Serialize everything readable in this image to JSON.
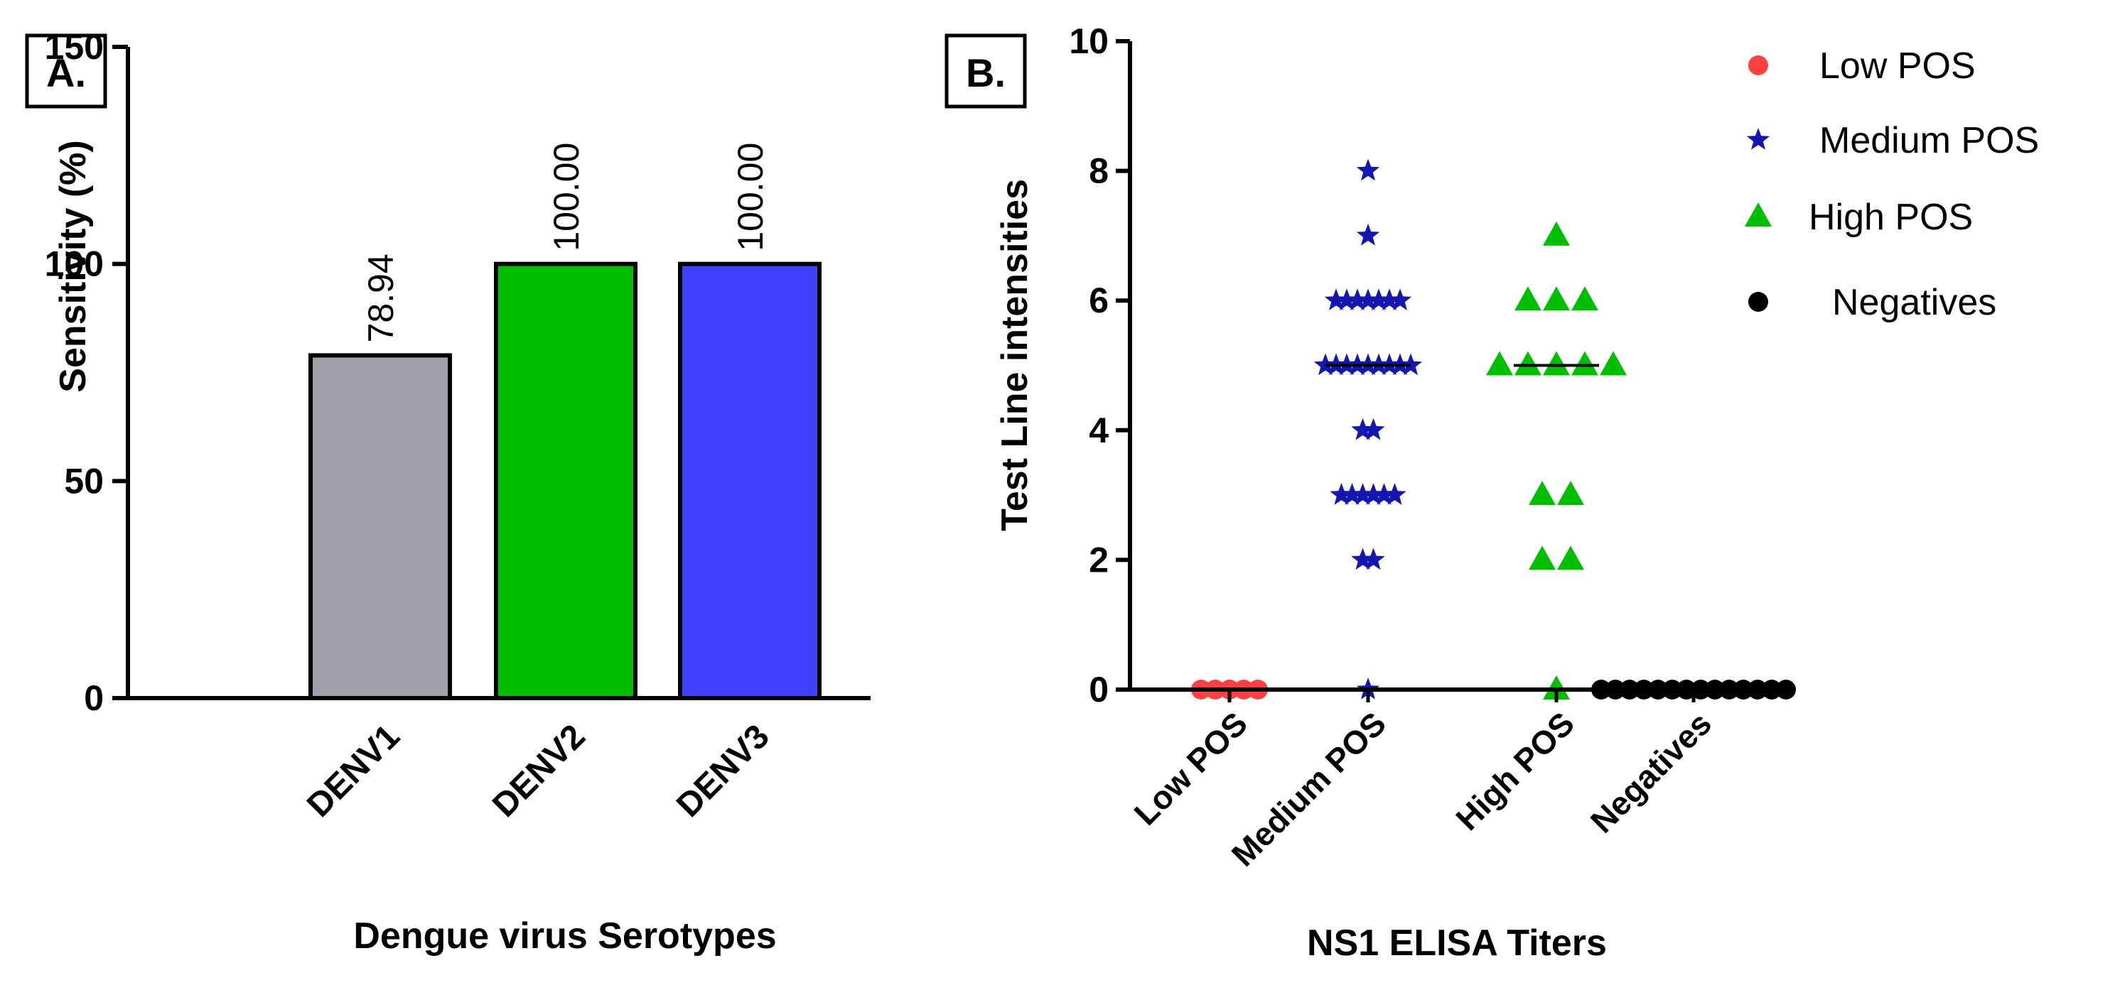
{
  "chart_data": [
    {
      "panel": "A.",
      "type": "bar",
      "categories": [
        "DENV1",
        "DENV2",
        "DENV3"
      ],
      "values": [
        78.94,
        100.0,
        100.0
      ],
      "value_labels": [
        "78.94",
        "100.00",
        "100.00"
      ],
      "colors": [
        "#a0a0a8",
        "#00bf00",
        "#4040ff"
      ],
      "xlabel": "Dengue virus Serotypes",
      "ylabel": "Sensitivity (%)",
      "ylim": [
        0,
        150
      ],
      "yticks": [
        "0",
        "50",
        "100",
        "150"
      ],
      "grid": false
    },
    {
      "panel": "B.",
      "type": "scatter",
      "categories": [
        "Low POS",
        "Medium POS",
        "High POS",
        "Negatives"
      ],
      "xlabel": "NS1 ELISA Titers",
      "ylabel": "Test Line intensities",
      "ylim": [
        0,
        10
      ],
      "yticks": [
        "0",
        "2",
        "4",
        "6",
        "8",
        "10"
      ],
      "grid": false,
      "legend_position": "top-right",
      "series": [
        {
          "name": "Low POS",
          "marker": "circle",
          "color": "#ff4040",
          "points": [
            {
              "y": 0,
              "count": 5
            }
          ],
          "median": 0
        },
        {
          "name": "Medium POS",
          "marker": "star",
          "color": "#1515b0",
          "points": [
            {
              "y": 0,
              "count": 1
            },
            {
              "y": 2,
              "count": 2
            },
            {
              "y": 3,
              "count": 6
            },
            {
              "y": 4,
              "count": 2
            },
            {
              "y": 5,
              "count": 9
            },
            {
              "y": 6,
              "count": 7
            },
            {
              "y": 7,
              "count": 1
            },
            {
              "y": 8,
              "count": 1
            }
          ],
          "median": 5
        },
        {
          "name": "High POS",
          "marker": "triangle",
          "color": "#00bf00",
          "points": [
            {
              "y": 0,
              "count": 1
            },
            {
              "y": 2,
              "count": 2
            },
            {
              "y": 3,
              "count": 2
            },
            {
              "y": 5,
              "count": 5
            },
            {
              "y": 6,
              "count": 3
            },
            {
              "y": 7,
              "count": 1
            }
          ],
          "median": 5
        },
        {
          "name": "Negatives",
          "marker": "circle",
          "color": "#000000",
          "points": [
            {
              "y": 0,
              "count": 14
            }
          ],
          "median": 0
        }
      ]
    }
  ]
}
